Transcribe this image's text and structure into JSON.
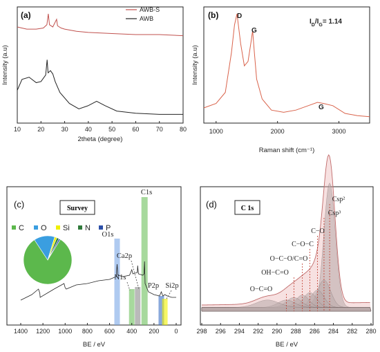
{
  "colors": {
    "awb_s": "#c0504d",
    "awb": "#222222",
    "raman": "#d9624a",
    "survey": "#222222",
    "green": "#6cbf5c",
    "blue": "#7aa6e6",
    "gray": "#8c8c8c",
    "yellow": "#f0f000",
    "dblue": "#3a6fc4",
    "c1s_fill": "#b9a9a9",
    "c1s_env": "#e9a9a9"
  },
  "chart_data": [
    {
      "panel": "(a)",
      "type": "line",
      "xlabel": "2theta (degree)",
      "ylabel": "Intensity (a.u)",
      "xlim": [
        10,
        80
      ],
      "xticks": [
        "10",
        "20",
        "30",
        "40",
        "50",
        "60",
        "70",
        "80"
      ],
      "legend": [
        "AWB-S",
        "AWB"
      ],
      "legend_position": "top-right",
      "series": [
        {
          "name": "AWB-S",
          "x": [
            10,
            14,
            18,
            21,
            22.5,
            23.1,
            23.6,
            25,
            26.6,
            27,
            28.5,
            30,
            35,
            40,
            50,
            60,
            70,
            80
          ],
          "y": [
            0.88,
            0.86,
            0.86,
            0.87,
            0.9,
            1.0,
            0.9,
            0.88,
            0.95,
            0.89,
            0.87,
            0.86,
            0.84,
            0.83,
            0.82,
            0.81,
            0.81,
            0.8
          ]
        },
        {
          "name": "AWB",
          "x": [
            10,
            12,
            15,
            18,
            20,
            22,
            22.6,
            23,
            24,
            25,
            26,
            28,
            32,
            36,
            40,
            43.5,
            47,
            52,
            60,
            70,
            80
          ],
          "y": [
            0.3,
            0.4,
            0.42,
            0.37,
            0.38,
            0.44,
            0.58,
            0.46,
            0.48,
            0.45,
            0.38,
            0.28,
            0.18,
            0.13,
            0.16,
            0.2,
            0.16,
            0.11,
            0.09,
            0.08,
            0.08
          ]
        }
      ]
    },
    {
      "panel": "(b)",
      "type": "line",
      "xlabel": "Raman shift (cm⁻¹)",
      "ylabel": "Intensity (a.u)",
      "xlim": [
        800,
        3500
      ],
      "xticks": [
        "1000",
        "2000",
        "3000"
      ],
      "annotations": [
        "D",
        "G",
        "G",
        "I_D/I_G= 1.14"
      ],
      "ratio_text": "I",
      "series": [
        {
          "name": "Raman",
          "x": [
            800,
            1000,
            1150,
            1250,
            1300,
            1340,
            1400,
            1460,
            1520,
            1570,
            1595,
            1620,
            1660,
            1750,
            1900,
            2100,
            2300,
            2500,
            2650,
            2750,
            2900,
            3100,
            3300,
            3500
          ],
          "y": [
            0.1,
            0.14,
            0.24,
            0.6,
            0.85,
            0.95,
            0.68,
            0.48,
            0.52,
            0.7,
            0.8,
            0.62,
            0.36,
            0.18,
            0.08,
            0.06,
            0.08,
            0.12,
            0.15,
            0.14,
            0.12,
            0.05,
            0.03,
            0.02
          ]
        }
      ]
    },
    {
      "panel": "(c)",
      "type": "line",
      "title": "Survey",
      "xlabel": "BE / eV",
      "xlim": [
        1400,
        0
      ],
      "xticks": [
        "1400",
        "1200",
        "1000",
        "800",
        "600",
        "400",
        "200",
        "0"
      ],
      "peaks": [
        "C1s",
        "O1s",
        "Ca2p",
        "N1s",
        "P2p",
        "Si2p"
      ],
      "bands": [
        {
          "label": "C1s",
          "be": 285,
          "color": "green"
        },
        {
          "label": "O1s",
          "be": 532,
          "color": "blue"
        },
        {
          "label": "Ca2p",
          "be": 347,
          "color": "gray"
        },
        {
          "label": "N1s",
          "be": 400,
          "color": "green"
        },
        {
          "label": "P2p",
          "be": 134,
          "color": "dblue"
        },
        {
          "label": "Si2p",
          "be": 102,
          "color": "yellow"
        }
      ],
      "pie": {
        "legend": [
          "C",
          "O",
          "Si",
          "N",
          "P"
        ],
        "values": [
          82,
          14,
          1.5,
          1.5,
          1
        ],
        "colors": [
          "#5cb84c",
          "#3a9ee0",
          "#f0f000",
          "#2f7a3a",
          "#2c4fa8"
        ]
      },
      "series": [
        {
          "name": "Survey",
          "x": [
            1400,
            1300,
            1240,
            1228,
            1225,
            1100,
            1010,
            1000,
            990,
            900,
            800,
            700,
            600,
            540,
            532,
            525,
            480,
            420,
            400,
            390,
            350,
            347,
            340,
            300,
            290,
            285,
            280,
            250,
            200,
            150,
            134,
            120,
            102,
            80,
            40,
            0
          ],
          "y": [
            0.18,
            0.22,
            0.26,
            0.23,
            0.2,
            0.26,
            0.3,
            0.27,
            0.26,
            0.29,
            0.3,
            0.32,
            0.33,
            0.35,
            0.44,
            0.36,
            0.35,
            0.36,
            0.4,
            0.37,
            0.38,
            0.43,
            0.37,
            0.36,
            0.37,
            0.46,
            0.3,
            0.24,
            0.22,
            0.21,
            0.24,
            0.21,
            0.22,
            0.21,
            0.2,
            0.2
          ]
        }
      ]
    },
    {
      "panel": "(d)",
      "type": "line",
      "title": "C 1s",
      "xlabel": "BE / eV",
      "xlim": [
        298,
        280
      ],
      "xticks": [
        "298",
        "296",
        "294",
        "292",
        "290",
        "288",
        "286",
        "284",
        "282",
        "280"
      ],
      "components": [
        {
          "label": "Csp²",
          "be": 284.4,
          "height": 1.0,
          "width": 0.6
        },
        {
          "label": "Csp³",
          "be": 285.0,
          "height": 0.22,
          "width": 0.7
        },
        {
          "label": "C−O",
          "be": 285.7,
          "height": 0.14,
          "width": 0.7
        },
        {
          "label": "C−O−C",
          "be": 286.5,
          "height": 0.12,
          "width": 0.7
        },
        {
          "label": "O−C−O/C=O",
          "be": 287.3,
          "height": 0.1,
          "width": 0.7
        },
        {
          "label": "OH−C=O",
          "be": 288.2,
          "height": 0.08,
          "width": 0.8
        },
        {
          "label": "O−C=O",
          "be": 289.0,
          "height": 0.06,
          "width": 0.9
        }
      ],
      "extra_peak": {
        "be": 291,
        "height": 0.06,
        "width": 1.2
      }
    }
  ]
}
